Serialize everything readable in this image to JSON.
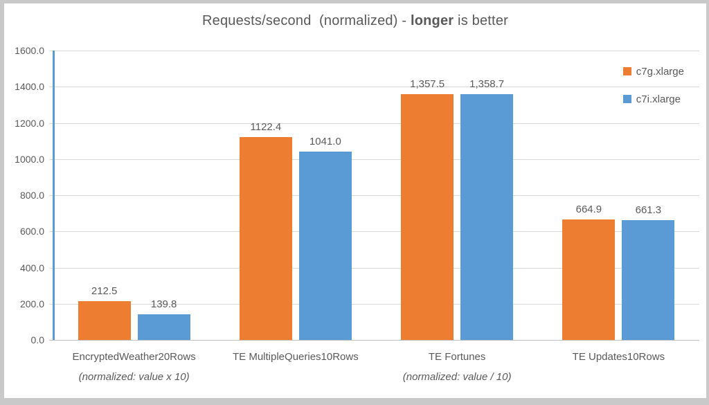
{
  "chart_data": {
    "type": "bar",
    "title": {
      "part1": "Requests/second  (normalized) - ",
      "bold": "longer",
      "part2": " is better"
    },
    "categories": [
      {
        "label": "EncryptedWeather20Rows",
        "annotation": "(normalized: value x 10)"
      },
      {
        "label": "TE MultipleQueries10Rows",
        "annotation": ""
      },
      {
        "label": "TE Fortunes",
        "annotation": "(normalized: value / 10)"
      },
      {
        "label": "TE Updates10Rows",
        "annotation": ""
      }
    ],
    "series": [
      {
        "name": "c7g.xlarge",
        "color": "#ED7D31",
        "values": [
          212.5,
          1122.4,
          1357.5,
          664.9
        ],
        "labels": [
          "212.5",
          "1122.4",
          "1,357.5",
          "664.9"
        ]
      },
      {
        "name": "c7i.xlarge",
        "color": "#5B9BD5",
        "values": [
          139.8,
          1041.0,
          1358.7,
          661.3
        ],
        "labels": [
          "139.8",
          "1041.0",
          "1,358.7",
          "661.3"
        ]
      }
    ],
    "ylim": [
      0,
      1600
    ],
    "ytick_step": 200,
    "yticks": [
      "1600.0",
      "1400.0",
      "1200.0",
      "1000.0",
      "800.0",
      "600.0",
      "400.0",
      "200.0",
      "0.0"
    ],
    "grid": true,
    "legend_position": "top-right-inside"
  },
  "colors": {
    "gridline": "#D9D9D9",
    "x_axis_line": "#BFBFBF",
    "y_axis_line": "#5B9BD5",
    "text": "#595959",
    "frame_border": "#C9C9C9"
  }
}
